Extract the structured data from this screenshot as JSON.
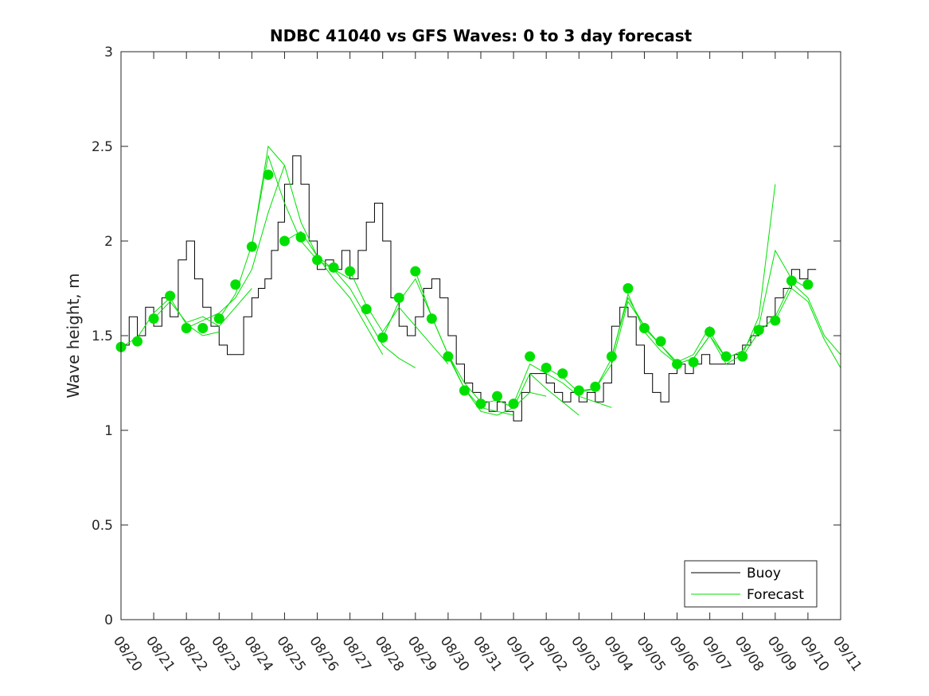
{
  "chart_data": {
    "type": "line",
    "title": "NDBC 41040 vs GFS Waves: 0 to 3 day forecast",
    "xlabel": "",
    "ylabel": "Wave height, m",
    "xlim": [
      0,
      22
    ],
    "ylim": [
      0,
      3
    ],
    "x_ticks": [
      "08/20",
      "08/21",
      "08/22",
      "08/23",
      "08/24",
      "08/25",
      "08/26",
      "08/27",
      "08/28",
      "08/29",
      "08/30",
      "08/31",
      "09/01",
      "09/02",
      "09/03",
      "09/04",
      "09/05",
      "09/06",
      "09/07",
      "09/08",
      "09/09",
      "09/10",
      "09/11"
    ],
    "y_ticks": [
      "0",
      "0.5",
      "1",
      "1.5",
      "2",
      "2.5",
      "3"
    ],
    "y_tick_values": [
      0,
      0.5,
      1,
      1.5,
      2,
      2.5,
      3
    ],
    "legend": {
      "position": "bottom-right",
      "entries": [
        {
          "label": "Buoy",
          "color": "#000000"
        },
        {
          "label": "Forecast",
          "color": "#00e000"
        }
      ]
    },
    "buoy": {
      "name": "Buoy",
      "color": "#000000",
      "x": [
        0,
        0.25,
        0.5,
        0.75,
        1,
        1.25,
        1.5,
        1.75,
        2,
        2.25,
        2.5,
        2.75,
        3,
        3.25,
        3.5,
        3.75,
        4,
        4.2,
        4.4,
        4.6,
        4.8,
        5,
        5.25,
        5.5,
        5.75,
        6,
        6.25,
        6.5,
        6.75,
        7,
        7.25,
        7.5,
        7.75,
        8,
        8.25,
        8.5,
        8.75,
        9,
        9.25,
        9.5,
        9.75,
        10,
        10.25,
        10.5,
        10.75,
        11,
        11.25,
        11.5,
        11.75,
        12,
        12.25,
        12.5,
        12.75,
        13,
        13.25,
        13.5,
        13.75,
        14,
        14.25,
        14.5,
        14.75,
        15,
        15.25,
        15.5,
        15.75,
        16,
        16.25,
        16.5,
        16.75,
        17,
        17.25,
        17.5,
        17.75,
        18,
        18.25,
        18.5,
        18.75,
        19,
        19.25,
        19.5,
        19.75,
        20,
        20.25,
        20.5,
        20.75,
        21,
        21.25
      ],
      "values": [
        1.45,
        1.6,
        1.5,
        1.65,
        1.55,
        1.7,
        1.6,
        1.9,
        2.0,
        1.8,
        1.65,
        1.55,
        1.45,
        1.4,
        1.4,
        1.6,
        1.7,
        1.75,
        1.8,
        1.95,
        2.1,
        2.3,
        2.45,
        2.3,
        2.0,
        1.85,
        1.9,
        1.85,
        1.95,
        1.8,
        1.95,
        2.1,
        2.2,
        2.0,
        1.7,
        1.55,
        1.5,
        1.6,
        1.75,
        1.8,
        1.7,
        1.5,
        1.35,
        1.25,
        1.2,
        1.15,
        1.1,
        1.15,
        1.1,
        1.05,
        1.2,
        1.3,
        1.3,
        1.25,
        1.2,
        1.15,
        1.2,
        1.15,
        1.2,
        1.15,
        1.25,
        1.55,
        1.65,
        1.6,
        1.45,
        1.3,
        1.2,
        1.15,
        1.3,
        1.35,
        1.3,
        1.35,
        1.4,
        1.35,
        1.35,
        1.35,
        1.4,
        1.45,
        1.5,
        1.55,
        1.6,
        1.7,
        1.75,
        1.85,
        1.8,
        1.85,
        1.85
      ]
    },
    "forecast_markers": {
      "name": "Forecast (analysis)",
      "color": "#00e000",
      "x": [
        0,
        0.5,
        1,
        1.5,
        2,
        2.5,
        3,
        3.5,
        4,
        4.5,
        5,
        5.5,
        6,
        6.5,
        7,
        7.5,
        8,
        8.5,
        9,
        9.5,
        10,
        10.5,
        11,
        11.5,
        12,
        12.5,
        13,
        13.5,
        14,
        14.5,
        15,
        15.5,
        16,
        16.5,
        17,
        17.5,
        18,
        18.5,
        19,
        19.5,
        20,
        20.5,
        21
      ],
      "values": [
        1.44,
        1.47,
        1.59,
        1.71,
        1.54,
        1.54,
        1.59,
        1.77,
        1.97,
        2.35,
        2.0,
        2.02,
        1.9,
        1.86,
        1.84,
        1.64,
        1.49,
        1.7,
        1.84,
        1.59,
        1.39,
        1.21,
        1.14,
        1.18,
        1.14,
        1.39,
        1.33,
        1.3,
        1.21,
        1.23,
        1.39,
        1.75,
        1.54,
        1.47,
        1.35,
        1.36,
        1.52,
        1.39,
        1.39,
        1.53,
        1.58,
        1.79,
        1.77
      ]
    },
    "forecast_runs": [
      {
        "name": "Forecast",
        "color": "#00e000",
        "x": [
          0,
          0.5,
          1,
          1.5,
          2,
          2.5,
          3
        ],
        "values": [
          1.44,
          1.49,
          1.62,
          1.7,
          1.56,
          1.5,
          1.52
        ]
      },
      {
        "name": "Forecast",
        "color": "#00e000",
        "x": [
          1,
          1.5,
          2,
          2.5,
          3,
          3.5,
          4
        ],
        "values": [
          1.59,
          1.68,
          1.57,
          1.6,
          1.55,
          1.65,
          1.75
        ]
      },
      {
        "name": "Forecast",
        "color": "#00e000",
        "x": [
          2,
          2.5,
          3,
          3.5,
          4,
          4.5,
          5
        ],
        "values": [
          1.54,
          1.58,
          1.62,
          1.7,
          1.85,
          2.15,
          2.4
        ]
      },
      {
        "name": "Forecast",
        "color": "#00e000",
        "x": [
          3,
          3.5,
          4,
          4.5,
          5,
          5.5,
          6
        ],
        "values": [
          1.59,
          1.72,
          1.98,
          2.45,
          2.2,
          2.0,
          1.9
        ]
      },
      {
        "name": "Forecast",
        "color": "#00e000",
        "x": [
          4,
          4.5,
          5,
          5.5,
          6,
          6.5,
          7
        ],
        "values": [
          1.97,
          2.5,
          2.4,
          2.1,
          1.92,
          1.85,
          1.8
        ]
      },
      {
        "name": "Forecast",
        "color": "#00e000",
        "x": [
          5,
          5.5,
          6,
          6.5,
          7,
          7.5,
          8
        ],
        "values": [
          2.0,
          2.05,
          1.92,
          1.8,
          1.7,
          1.55,
          1.4
        ]
      },
      {
        "name": "Forecast",
        "color": "#00e000",
        "x": [
          6,
          6.5,
          7,
          7.5,
          8,
          8.5,
          9
        ],
        "values": [
          1.9,
          1.85,
          1.75,
          1.6,
          1.45,
          1.38,
          1.33
        ]
      },
      {
        "name": "Forecast",
        "color": "#00e000",
        "x": [
          7,
          7.5,
          8,
          8.5,
          9,
          9.5,
          10
        ],
        "values": [
          1.84,
          1.66,
          1.52,
          1.65,
          1.55,
          1.45,
          1.35
        ]
      },
      {
        "name": "Forecast",
        "color": "#00e000",
        "x": [
          8,
          8.5,
          9,
          9.5,
          10,
          10.5,
          11
        ],
        "values": [
          1.49,
          1.68,
          1.8,
          1.6,
          1.4,
          1.25,
          1.15
        ]
      },
      {
        "name": "Forecast",
        "color": "#00e000",
        "x": [
          9,
          9.5,
          10,
          10.5,
          11,
          11.5,
          12
        ],
        "values": [
          1.84,
          1.6,
          1.4,
          1.22,
          1.12,
          1.1,
          1.08
        ]
      },
      {
        "name": "Forecast",
        "color": "#00e000",
        "x": [
          10,
          10.5,
          11,
          11.5,
          12,
          12.5,
          13
        ],
        "values": [
          1.39,
          1.22,
          1.1,
          1.08,
          1.12,
          1.2,
          1.18
        ]
      },
      {
        "name": "Forecast",
        "color": "#00e000",
        "x": [
          11,
          11.5,
          12,
          12.5,
          13,
          13.5,
          14
        ],
        "values": [
          1.14,
          1.16,
          1.12,
          1.3,
          1.22,
          1.15,
          1.08
        ]
      },
      {
        "name": "Forecast",
        "color": "#00e000",
        "x": [
          12,
          12.5,
          13,
          13.5,
          14,
          14.5,
          15
        ],
        "values": [
          1.14,
          1.35,
          1.3,
          1.25,
          1.18,
          1.15,
          1.12
        ]
      },
      {
        "name": "Forecast",
        "color": "#00e000",
        "x": [
          13,
          13.5,
          14,
          14.5,
          15,
          15.5,
          16
        ],
        "values": [
          1.33,
          1.28,
          1.2,
          1.22,
          1.35,
          1.68,
          1.55
        ]
      },
      {
        "name": "Forecast",
        "color": "#00e000",
        "x": [
          14,
          14.5,
          15,
          15.5,
          16,
          16.5,
          17
        ],
        "values": [
          1.21,
          1.22,
          1.38,
          1.72,
          1.52,
          1.42,
          1.35
        ]
      },
      {
        "name": "Forecast",
        "color": "#00e000",
        "x": [
          15,
          15.5,
          16,
          16.5,
          17,
          17.5,
          18
        ],
        "values": [
          1.39,
          1.7,
          1.55,
          1.45,
          1.36,
          1.4,
          1.55
        ]
      },
      {
        "name": "Forecast",
        "color": "#00e000",
        "x": [
          16,
          16.5,
          17,
          17.5,
          18,
          18.5,
          19
        ],
        "values": [
          1.54,
          1.45,
          1.35,
          1.38,
          1.5,
          1.38,
          1.42
        ]
      },
      {
        "name": "Forecast",
        "color": "#00e000",
        "x": [
          17,
          17.5,
          18,
          18.5,
          19,
          19.5,
          20
        ],
        "values": [
          1.35,
          1.38,
          1.5,
          1.35,
          1.4,
          1.6,
          2.3
        ]
      },
      {
        "name": "Forecast",
        "color": "#00e000",
        "x": [
          18,
          18.5,
          19,
          19.5,
          20,
          20.5,
          21
        ],
        "values": [
          1.52,
          1.38,
          1.42,
          1.55,
          1.95,
          1.8,
          1.75
        ]
      },
      {
        "name": "Forecast",
        "color": "#00e000",
        "x": [
          19,
          19.5,
          20,
          20.5,
          21,
          21.5,
          22
        ],
        "values": [
          1.39,
          1.52,
          1.6,
          1.78,
          1.7,
          1.5,
          1.4
        ]
      },
      {
        "name": "Forecast",
        "color": "#00e000",
        "x": [
          20,
          20.5,
          21,
          21.5,
          22
        ],
        "values": [
          1.58,
          1.75,
          1.68,
          1.48,
          1.33
        ]
      }
    ]
  }
}
